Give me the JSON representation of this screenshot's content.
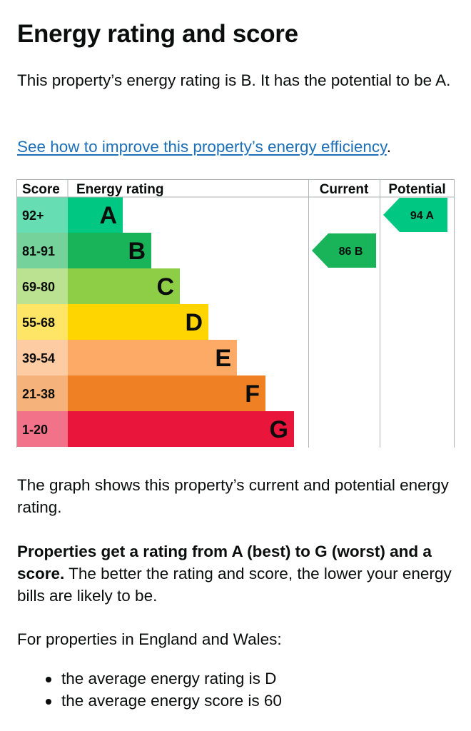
{
  "heading": "Energy rating and score",
  "intro": "This property’s energy rating is B. It has the potential to be A.",
  "link": {
    "text": "See how to improve this property’s energy efficiency",
    "suffix": "."
  },
  "chart_data": {
    "type": "bar",
    "headers": {
      "score": "Score",
      "rating": "Energy rating",
      "current": "Current",
      "potential": "Potential"
    },
    "bands": [
      {
        "letter": "A",
        "range": "92+",
        "bar_color": "#00c781",
        "range_color": "#66ddb3"
      },
      {
        "letter": "B",
        "range": "81-91",
        "bar_color": "#19b459",
        "range_color": "#75d29b"
      },
      {
        "letter": "C",
        "range": "69-80",
        "bar_color": "#8dce46",
        "range_color": "#bbe290"
      },
      {
        "letter": "D",
        "range": "55-68",
        "bar_color": "#ffd500",
        "range_color": "#ffe566"
      },
      {
        "letter": "E",
        "range": "39-54",
        "bar_color": "#fcaa65",
        "range_color": "#fdcca3"
      },
      {
        "letter": "F",
        "range": "21-38",
        "bar_color": "#ef8023",
        "range_color": "#f5b37b"
      },
      {
        "letter": "G",
        "range": "1-20",
        "bar_color": "#e9153b",
        "range_color": "#f27389"
      }
    ],
    "current": {
      "score": 86,
      "rating": "B",
      "label": "86 B",
      "color": "#19b459"
    },
    "potential": {
      "score": 94,
      "rating": "A",
      "label": "94 A",
      "color": "#00c781"
    }
  },
  "graph_note": "The graph shows this property’s current and potential energy rating.",
  "ratings_info": {
    "bold": "Properties get a rating from A (best) to G (worst) and a score.",
    "rest": " The better the rating and score, the lower your energy bills are likely to be."
  },
  "england_wales": "For properties in England and Wales:",
  "bullets": [
    "the average energy rating is D",
    "the average energy score is 60"
  ]
}
